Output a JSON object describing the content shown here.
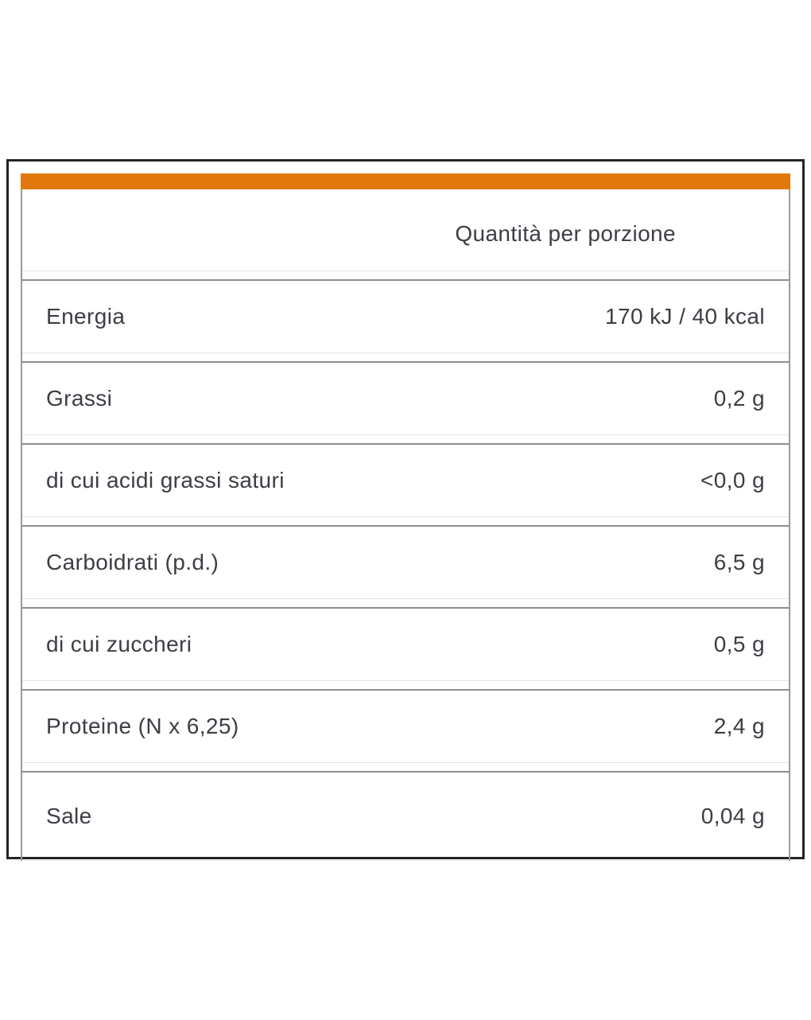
{
  "table": {
    "column_header": "Quantità per porzione",
    "rows": [
      {
        "label": "Energia",
        "value": "170 kJ / 40 kcal"
      },
      {
        "label": "Grassi",
        "value": "0,2 g"
      },
      {
        "label": "di cui acidi grassi saturi",
        "value": "<0,0 g"
      },
      {
        "label": "Carboidrati (p.d.)",
        "value": "6,5 g"
      },
      {
        "label": "di cui zuccheri",
        "value": "0,5 g"
      },
      {
        "label": "Proteine (N x 6,25)",
        "value": "2,4 g"
      },
      {
        "label": "Sale",
        "value": "0,04 g"
      }
    ]
  },
  "colors": {
    "accent_orange": "#E2790F",
    "text": "#3D3D45",
    "outer_border": "#242424",
    "separator_gray": "#8F8F8F",
    "separator_light": "#E4E4E4",
    "side_border_gray": "#9A9A9A",
    "background": "#FFFFFF"
  }
}
